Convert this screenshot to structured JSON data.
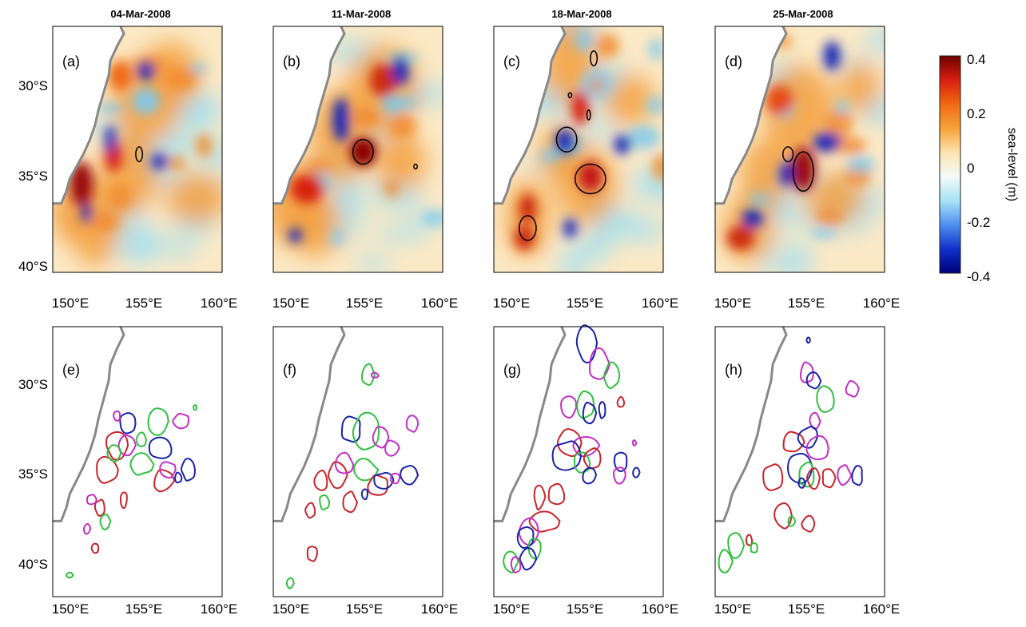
{
  "figure": {
    "dates": [
      "04-Mar-2008",
      "11-Mar-2008",
      "18-Mar-2008",
      "25-Mar-2008"
    ],
    "panel_labels_top": [
      "(a)",
      "(b)",
      "(c)",
      "(d)"
    ],
    "panel_labels_bottom": [
      "(e)",
      "(f)",
      "(g)",
      "(h)"
    ],
    "lat_ticks": [
      "30°S",
      "35°S",
      "40°S"
    ],
    "lon_ticks": [
      "150°E",
      "155°E",
      "160°E"
    ],
    "colorbar": {
      "label": "sea-level (m)",
      "ticks": [
        "0.4",
        "0.2",
        "0",
        "-0.2",
        "-0.4"
      ],
      "range": [
        -0.4,
        0.4
      ],
      "colors": [
        "#00007a",
        "#1030c8",
        "#4f8ff0",
        "#a7e3f7",
        "#f3faf8",
        "#fce3b0",
        "#f7a238",
        "#ee6a12",
        "#d81f10",
        "#6b0000"
      ]
    },
    "map_extent": {
      "lon": [
        148.5,
        163.5
      ],
      "lat": [
        -42,
        -27
      ]
    },
    "colors": {
      "coast": "#888888",
      "contour_black": "#000000",
      "red": "#c8242a",
      "green": "#30c040",
      "blue": "#1a22a8",
      "magenta": "#c32ec8"
    }
  }
}
